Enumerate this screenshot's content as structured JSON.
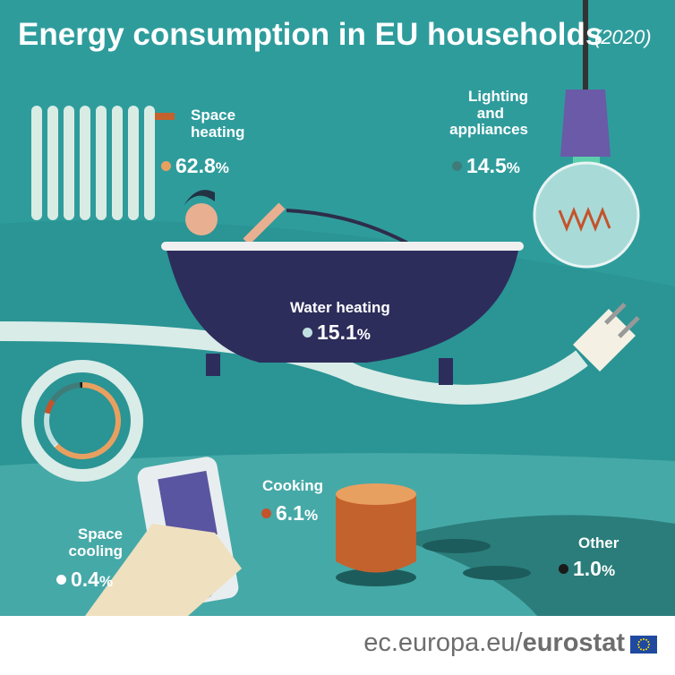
{
  "title": "Energy consumption in EU households",
  "year": "(2020)",
  "footer": {
    "domain": "ec.europa.eu/",
    "brand": "eurostat"
  },
  "chart_data": {
    "type": "pie",
    "style": "donut",
    "categories": [
      "Space heating",
      "Space cooling",
      "Water heating",
      "Cooking",
      "Lighting and appliances",
      "Other"
    ],
    "values": [
      62.8,
      0.4,
      15.1,
      6.1,
      14.5,
      1.0
    ],
    "unit": "%",
    "colors": [
      "#e8a060",
      "#ffffff",
      "#bfdfe0",
      "#c4532b",
      "#3f7c79",
      "#1a1a1a"
    ]
  },
  "labels": {
    "space_heating": {
      "name": "Space heating",
      "line1": "Space",
      "line2": "heating",
      "value": "62.8",
      "unit": "%"
    },
    "lighting": {
      "line1": "Lighting",
      "line2": "and",
      "line3": "appliances",
      "value": "14.5",
      "unit": "%"
    },
    "water_heating": {
      "line1": "Water heating",
      "value": "15.1",
      "unit": "%"
    },
    "cooking": {
      "line1": "Cooking",
      "value": "6.1",
      "unit": "%"
    },
    "space_cooling": {
      "line1": "Space",
      "line2": "cooling",
      "value": "0.4",
      "unit": "%"
    },
    "other": {
      "line1": "Other",
      "value": "1.0",
      "unit": "%"
    }
  }
}
